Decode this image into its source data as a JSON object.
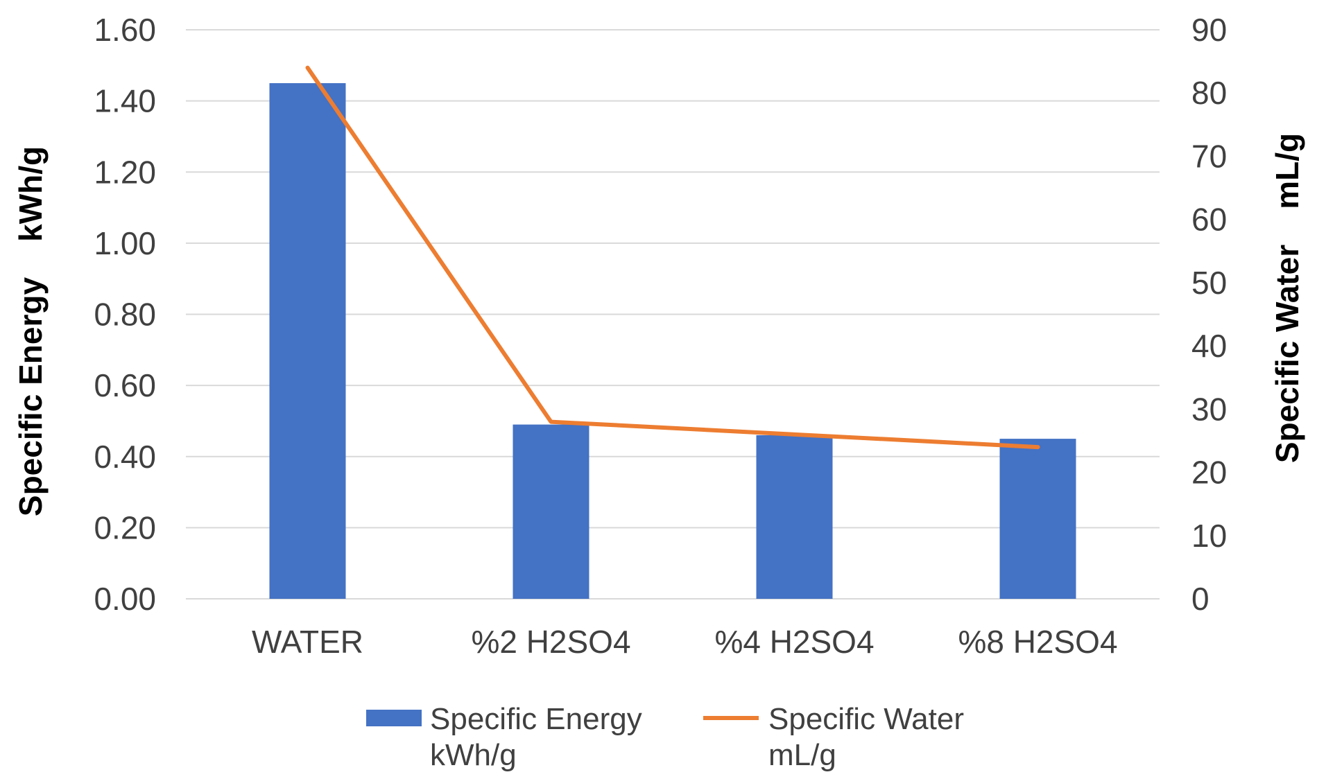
{
  "chart_data": {
    "type": "bar",
    "categories": [
      "WATER",
      "%2 H2SO4",
      "%4 H2SO4",
      "%8 H2SO4"
    ],
    "series": [
      {
        "name": "Specific Energy kWh/g",
        "legend_lines": [
          "Specific Energy",
          "kWh/g"
        ],
        "type": "bar",
        "axis": "left",
        "color": "#4472C4",
        "values": [
          1.45,
          0.49,
          0.46,
          0.45
        ]
      },
      {
        "name": "Specific Water mL/g",
        "legend_lines": [
          "Specific Water",
          "mL/g"
        ],
        "type": "line",
        "axis": "right",
        "color": "#ED7D31",
        "values": [
          84,
          28,
          26,
          24
        ]
      }
    ],
    "y_left": {
      "label": "Specific Energy    kWh/g",
      "lim": [
        0,
        1.6
      ],
      "ticks": [
        "0.00",
        "0.20",
        "0.40",
        "0.60",
        "0.80",
        "1.00",
        "1.20",
        "1.40",
        "1.60"
      ]
    },
    "y_right": {
      "label": "Specific Water    mL/g",
      "lim": [
        0,
        90
      ],
      "ticks": [
        "0",
        "10",
        "20",
        "30",
        "40",
        "50",
        "60",
        "70",
        "80",
        "90"
      ]
    },
    "grid": true,
    "gridColor": "#D9D9D9",
    "legend": "bottom"
  }
}
